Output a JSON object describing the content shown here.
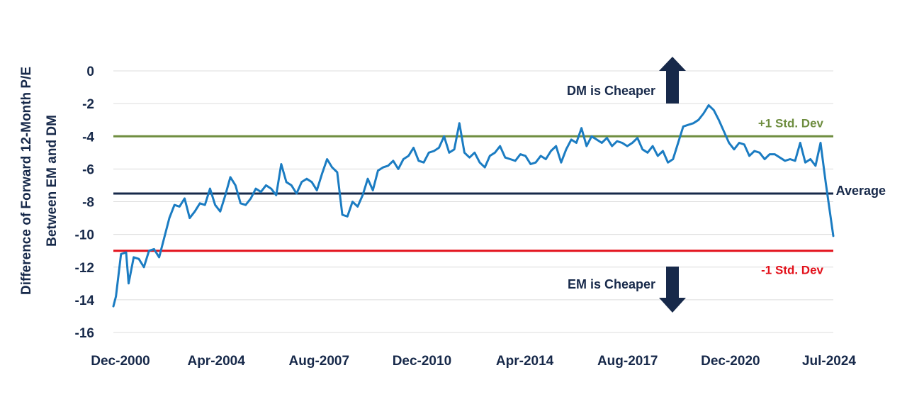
{
  "chart_data": {
    "type": "line",
    "title": "",
    "ylabel": [
      "Difference of Forward 12-Month P/E",
      "Between EM and DM"
    ],
    "xlabel": "",
    "x_ticks": [
      "Dec-2000",
      "Apr-2004",
      "Aug-2007",
      "Dec-2010",
      "Apr-2014",
      "Aug-2017",
      "Dec-2020",
      "Jul-2024"
    ],
    "x_range": [
      "2000-12",
      "2024-07"
    ],
    "ylim": [
      -16,
      0
    ],
    "y_ticks": [
      0,
      -2,
      -4,
      -6,
      -8,
      -10,
      -12,
      -14,
      -16
    ],
    "grid": "horizontal",
    "colors": {
      "series": "#1b7cc2",
      "plus_std": "#6e8d3f",
      "average": "#17294a",
      "minus_std": "#e3101a",
      "grid": "#dcdcdc",
      "text": "#17294a"
    },
    "reference_lines": [
      {
        "key": "plus_std",
        "label": "+1 Std. Dev",
        "value": -4.0
      },
      {
        "key": "average",
        "label": "Average",
        "value": -7.5
      },
      {
        "key": "minus_std",
        "label": "-1 Std. Dev",
        "value": -11.0
      }
    ],
    "annotations": {
      "up": "DM is Cheaper",
      "down": "EM is Cheaper"
    },
    "series": [
      {
        "values": [
          [
            "2000-12",
            -14.4
          ],
          [
            "2001-01",
            -13.8
          ],
          [
            "2001-03",
            -11.2
          ],
          [
            "2001-05",
            -11.1
          ],
          [
            "2001-06",
            -13.0
          ],
          [
            "2001-08",
            -11.4
          ],
          [
            "2001-10",
            -11.5
          ],
          [
            "2001-12",
            -12.0
          ],
          [
            "2002-02",
            -11.0
          ],
          [
            "2002-04",
            -10.9
          ],
          [
            "2002-06",
            -11.4
          ],
          [
            "2002-08",
            -10.2
          ],
          [
            "2002-10",
            -9.0
          ],
          [
            "2002-12",
            -8.2
          ],
          [
            "2003-02",
            -8.3
          ],
          [
            "2003-04",
            -7.8
          ],
          [
            "2003-06",
            -9.0
          ],
          [
            "2003-08",
            -8.6
          ],
          [
            "2003-10",
            -8.1
          ],
          [
            "2003-12",
            -8.2
          ],
          [
            "2004-02",
            -7.2
          ],
          [
            "2004-04",
            -8.2
          ],
          [
            "2004-06",
            -8.6
          ],
          [
            "2004-08",
            -7.6
          ],
          [
            "2004-10",
            -6.5
          ],
          [
            "2004-12",
            -7.0
          ],
          [
            "2005-02",
            -8.1
          ],
          [
            "2005-04",
            -8.2
          ],
          [
            "2005-06",
            -7.8
          ],
          [
            "2005-08",
            -7.2
          ],
          [
            "2005-10",
            -7.4
          ],
          [
            "2005-12",
            -7.0
          ],
          [
            "2006-02",
            -7.2
          ],
          [
            "2006-04",
            -7.6
          ],
          [
            "2006-06",
            -5.7
          ],
          [
            "2006-08",
            -6.8
          ],
          [
            "2006-10",
            -7.0
          ],
          [
            "2006-12",
            -7.5
          ],
          [
            "2007-02",
            -6.8
          ],
          [
            "2007-04",
            -6.6
          ],
          [
            "2007-06",
            -6.8
          ],
          [
            "2007-08",
            -7.3
          ],
          [
            "2007-10",
            -6.3
          ],
          [
            "2007-12",
            -5.4
          ],
          [
            "2008-02",
            -5.9
          ],
          [
            "2008-04",
            -6.2
          ],
          [
            "2008-06",
            -8.8
          ],
          [
            "2008-08",
            -8.9
          ],
          [
            "2008-10",
            -8.0
          ],
          [
            "2008-12",
            -8.3
          ],
          [
            "2009-02",
            -7.6
          ],
          [
            "2009-04",
            -6.6
          ],
          [
            "2009-06",
            -7.3
          ],
          [
            "2009-08",
            -6.1
          ],
          [
            "2009-10",
            -5.9
          ],
          [
            "2009-12",
            -5.8
          ],
          [
            "2010-02",
            -5.5
          ],
          [
            "2010-04",
            -6.0
          ],
          [
            "2010-06",
            -5.4
          ],
          [
            "2010-08",
            -5.2
          ],
          [
            "2010-10",
            -4.7
          ],
          [
            "2010-12",
            -5.5
          ],
          [
            "2011-02",
            -5.6
          ],
          [
            "2011-04",
            -5.0
          ],
          [
            "2011-06",
            -4.9
          ],
          [
            "2011-08",
            -4.7
          ],
          [
            "2011-10",
            -4.0
          ],
          [
            "2011-12",
            -5.0
          ],
          [
            "2012-02",
            -4.8
          ],
          [
            "2012-04",
            -3.2
          ],
          [
            "2012-06",
            -5.0
          ],
          [
            "2012-08",
            -5.3
          ],
          [
            "2012-10",
            -5.0
          ],
          [
            "2012-12",
            -5.6
          ],
          [
            "2013-02",
            -5.9
          ],
          [
            "2013-04",
            -5.2
          ],
          [
            "2013-06",
            -5.0
          ],
          [
            "2013-08",
            -4.6
          ],
          [
            "2013-10",
            -5.3
          ],
          [
            "2013-12",
            -5.4
          ],
          [
            "2014-02",
            -5.5
          ],
          [
            "2014-04",
            -5.1
          ],
          [
            "2014-06",
            -5.2
          ],
          [
            "2014-08",
            -5.7
          ],
          [
            "2014-10",
            -5.6
          ],
          [
            "2014-12",
            -5.2
          ],
          [
            "2015-02",
            -5.4
          ],
          [
            "2015-04",
            -4.9
          ],
          [
            "2015-06",
            -4.6
          ],
          [
            "2015-08",
            -5.6
          ],
          [
            "2015-10",
            -4.8
          ],
          [
            "2015-12",
            -4.2
          ],
          [
            "2016-02",
            -4.4
          ],
          [
            "2016-04",
            -3.5
          ],
          [
            "2016-06",
            -4.6
          ],
          [
            "2016-08",
            -4.0
          ],
          [
            "2016-10",
            -4.2
          ],
          [
            "2016-12",
            -4.4
          ],
          [
            "2017-02",
            -4.1
          ],
          [
            "2017-04",
            -4.6
          ],
          [
            "2017-06",
            -4.3
          ],
          [
            "2017-08",
            -4.4
          ],
          [
            "2017-10",
            -4.6
          ],
          [
            "2017-12",
            -4.4
          ],
          [
            "2018-02",
            -4.1
          ],
          [
            "2018-04",
            -4.8
          ],
          [
            "2018-06",
            -5.0
          ],
          [
            "2018-08",
            -4.6
          ],
          [
            "2018-10",
            -5.2
          ],
          [
            "2018-12",
            -4.9
          ],
          [
            "2019-02",
            -5.6
          ],
          [
            "2019-04",
            -5.4
          ],
          [
            "2019-06",
            -4.4
          ],
          [
            "2019-08",
            -3.4
          ],
          [
            "2019-10",
            -3.3
          ],
          [
            "2019-12",
            -3.2
          ],
          [
            "2020-02",
            -3.0
          ],
          [
            "2020-04",
            -2.6
          ],
          [
            "2020-06",
            -2.1
          ],
          [
            "2020-08",
            -2.4
          ],
          [
            "2020-10",
            -3.0
          ],
          [
            "2020-12",
            -3.7
          ],
          [
            "2021-02",
            -4.4
          ],
          [
            "2021-04",
            -4.8
          ],
          [
            "2021-06",
            -4.4
          ],
          [
            "2021-08",
            -4.5
          ],
          [
            "2021-10",
            -5.2
          ],
          [
            "2021-12",
            -4.9
          ],
          [
            "2022-02",
            -5.0
          ],
          [
            "2022-04",
            -5.4
          ],
          [
            "2022-06",
            -5.1
          ],
          [
            "2022-08",
            -5.1
          ],
          [
            "2022-10",
            -5.3
          ],
          [
            "2022-12",
            -5.5
          ],
          [
            "2023-02",
            -5.4
          ],
          [
            "2023-04",
            -5.5
          ],
          [
            "2023-06",
            -4.4
          ],
          [
            "2023-08",
            -5.6
          ],
          [
            "2023-10",
            -5.4
          ],
          [
            "2023-12",
            -5.8
          ],
          [
            "2024-02",
            -4.4
          ],
          [
            "2024-04",
            -6.8
          ],
          [
            "2024-07",
            -10.1
          ]
        ]
      }
    ]
  }
}
